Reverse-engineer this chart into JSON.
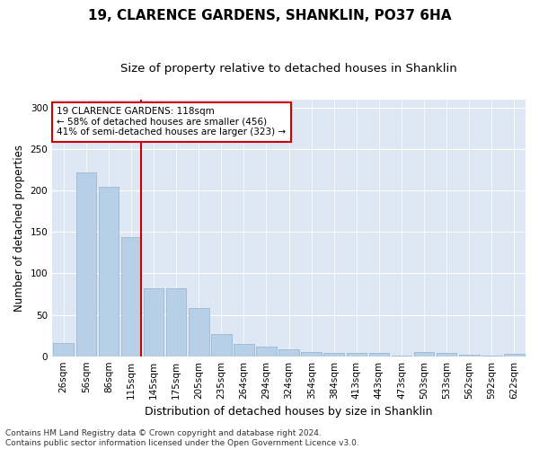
{
  "title": "19, CLARENCE GARDENS, SHANKLIN, PO37 6HA",
  "subtitle": "Size of property relative to detached houses in Shanklin",
  "xlabel": "Distribution of detached houses by size in Shanklin",
  "ylabel": "Number of detached properties",
  "bar_labels": [
    "26sqm",
    "56sqm",
    "86sqm",
    "115sqm",
    "145sqm",
    "175sqm",
    "205sqm",
    "235sqm",
    "264sqm",
    "294sqm",
    "324sqm",
    "354sqm",
    "384sqm",
    "413sqm",
    "443sqm",
    "473sqm",
    "503sqm",
    "533sqm",
    "562sqm",
    "592sqm",
    "622sqm"
  ],
  "bar_values": [
    16,
    222,
    204,
    144,
    82,
    82,
    58,
    27,
    15,
    12,
    8,
    5,
    4,
    4,
    4,
    1,
    5,
    4,
    2,
    1,
    3
  ],
  "bar_color": "#b8cfe8",
  "bar_edge_color": "#90b0d0",
  "vline_bar_index": 3,
  "vline_color": "#cc0000",
  "annotation_text": "19 CLARENCE GARDENS: 118sqm\n← 58% of detached houses are smaller (456)\n41% of semi-detached houses are larger (323) →",
  "annotation_box_color": "#ffffff",
  "annotation_box_edge": "#cc0000",
  "ylim": [
    0,
    310
  ],
  "yticks": [
    0,
    50,
    100,
    150,
    200,
    250,
    300
  ],
  "bg_color": "#dde8f4",
  "footer": "Contains HM Land Registry data © Crown copyright and database right 2024.\nContains public sector information licensed under the Open Government Licence v3.0.",
  "title_fontsize": 11,
  "subtitle_fontsize": 9.5,
  "xlabel_fontsize": 9,
  "ylabel_fontsize": 8.5,
  "tick_fontsize": 7.5,
  "annotation_fontsize": 7.5,
  "footer_fontsize": 6.5
}
